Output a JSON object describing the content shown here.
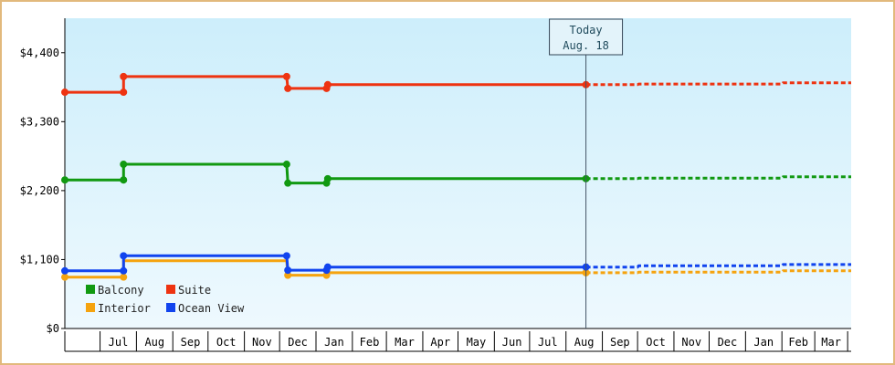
{
  "chart_data": {
    "type": "line",
    "title": "",
    "xlabel": "",
    "ylabel": "",
    "ylim": [
      0,
      4950
    ],
    "y_ticks": [
      {
        "value": 0,
        "label": "$0"
      },
      {
        "value": 1100,
        "label": "$1,100"
      },
      {
        "value": 2200,
        "label": "$2,200"
      },
      {
        "value": 3300,
        "label": "$3,300"
      },
      {
        "value": 4400,
        "label": "$4,400"
      }
    ],
    "x_range": [
      "2023-06-01",
      "2025-04-01"
    ],
    "x_ticks": [
      {
        "date": "2023-07-01",
        "label": "Jul"
      },
      {
        "date": "2023-08-01",
        "label": "Aug"
      },
      {
        "date": "2023-09-01",
        "label": "Sep"
      },
      {
        "date": "2023-10-01",
        "label": "Oct"
      },
      {
        "date": "2023-11-01",
        "label": "Nov"
      },
      {
        "date": "2023-12-01",
        "label": "Dec"
      },
      {
        "date": "2024-01-01",
        "label": "Jan"
      },
      {
        "date": "2024-02-01",
        "label": "Feb"
      },
      {
        "date": "2024-03-01",
        "label": "Mar"
      },
      {
        "date": "2024-04-01",
        "label": "Apr"
      },
      {
        "date": "2024-05-01",
        "label": "May"
      },
      {
        "date": "2024-06-01",
        "label": "Jun"
      },
      {
        "date": "2024-07-01",
        "label": "Jul"
      },
      {
        "date": "2024-08-01",
        "label": "Aug"
      },
      {
        "date": "2024-09-01",
        "label": "Sep"
      },
      {
        "date": "2024-10-01",
        "label": "Oct"
      },
      {
        "date": "2024-11-01",
        "label": "Nov"
      },
      {
        "date": "2024-12-01",
        "label": "Dec"
      },
      {
        "date": "2025-01-01",
        "label": "Jan"
      },
      {
        "date": "2025-02-01",
        "label": "Feb"
      },
      {
        "date": "2025-03-01",
        "label": "Mar"
      }
    ],
    "today": {
      "date": "2024-08-18",
      "line1": "Today",
      "line2": "Aug. 18"
    },
    "legend": {
      "position": "bottom-left",
      "columns": 2
    },
    "series": [
      {
        "name": "Balcony",
        "color": "#119911",
        "points": [
          {
            "date": "2023-06-01",
            "value": 2370
          },
          {
            "date": "2023-07-21",
            "value": 2370
          },
          {
            "date": "2023-07-21",
            "value": 2620
          },
          {
            "date": "2023-12-07",
            "value": 2620
          },
          {
            "date": "2023-12-08",
            "value": 2320
          },
          {
            "date": "2024-01-10",
            "value": 2320
          },
          {
            "date": "2024-01-11",
            "value": 2390
          },
          {
            "date": "2024-08-18",
            "value": 2390
          }
        ],
        "forecast": [
          {
            "date": "2024-08-18",
            "value": 2390
          },
          {
            "date": "2024-10-01",
            "value": 2390
          },
          {
            "date": "2024-10-02",
            "value": 2400
          },
          {
            "date": "2025-02-01",
            "value": 2400
          },
          {
            "date": "2025-02-02",
            "value": 2420
          },
          {
            "date": "2025-04-01",
            "value": 2420
          }
        ]
      },
      {
        "name": "Suite",
        "color": "#ee3311",
        "points": [
          {
            "date": "2023-06-01",
            "value": 3770
          },
          {
            "date": "2023-07-21",
            "value": 3770
          },
          {
            "date": "2023-07-21",
            "value": 4020
          },
          {
            "date": "2023-12-07",
            "value": 4020
          },
          {
            "date": "2023-12-08",
            "value": 3830
          },
          {
            "date": "2024-01-10",
            "value": 3830
          },
          {
            "date": "2024-01-11",
            "value": 3890
          },
          {
            "date": "2024-08-18",
            "value": 3890
          }
        ],
        "forecast": [
          {
            "date": "2024-08-18",
            "value": 3890
          },
          {
            "date": "2024-10-01",
            "value": 3890
          },
          {
            "date": "2024-10-02",
            "value": 3900
          },
          {
            "date": "2025-02-01",
            "value": 3900
          },
          {
            "date": "2025-02-02",
            "value": 3920
          },
          {
            "date": "2025-04-01",
            "value": 3920
          }
        ]
      },
      {
        "name": "Interior",
        "color": "#f5a30f",
        "points": [
          {
            "date": "2023-06-01",
            "value": 820
          },
          {
            "date": "2023-07-21",
            "value": 820
          },
          {
            "date": "2023-07-21",
            "value": 1080
          },
          {
            "date": "2023-12-07",
            "value": 1080
          },
          {
            "date": "2023-12-08",
            "value": 850
          },
          {
            "date": "2024-01-10",
            "value": 850
          },
          {
            "date": "2024-01-11",
            "value": 890
          },
          {
            "date": "2024-08-18",
            "value": 890
          }
        ],
        "forecast": [
          {
            "date": "2024-08-18",
            "value": 890
          },
          {
            "date": "2024-10-01",
            "value": 890
          },
          {
            "date": "2024-10-02",
            "value": 900
          },
          {
            "date": "2025-02-01",
            "value": 900
          },
          {
            "date": "2025-02-02",
            "value": 920
          },
          {
            "date": "2025-04-01",
            "value": 920
          }
        ]
      },
      {
        "name": "Ocean View",
        "color": "#1144ee",
        "points": [
          {
            "date": "2023-06-01",
            "value": 920
          },
          {
            "date": "2023-07-21",
            "value": 920
          },
          {
            "date": "2023-07-21",
            "value": 1160
          },
          {
            "date": "2023-12-07",
            "value": 1160
          },
          {
            "date": "2023-12-08",
            "value": 930
          },
          {
            "date": "2024-01-10",
            "value": 930
          },
          {
            "date": "2024-01-11",
            "value": 980
          },
          {
            "date": "2024-08-18",
            "value": 980
          }
        ],
        "forecast": [
          {
            "date": "2024-08-18",
            "value": 980
          },
          {
            "date": "2024-10-01",
            "value": 980
          },
          {
            "date": "2024-10-02",
            "value": 1000
          },
          {
            "date": "2025-02-01",
            "value": 1000
          },
          {
            "date": "2025-02-02",
            "value": 1020
          },
          {
            "date": "2025-04-01",
            "value": 1020
          }
        ]
      }
    ],
    "markers": {
      "Balcony": [
        {
          "date": "2023-06-01",
          "value": 2370
        },
        {
          "date": "2023-07-21",
          "value": 2370
        },
        {
          "date": "2023-07-21",
          "value": 2620
        },
        {
          "date": "2023-12-07",
          "value": 2620
        },
        {
          "date": "2023-12-08",
          "value": 2320
        },
        {
          "date": "2024-01-10",
          "value": 2320
        },
        {
          "date": "2024-01-11",
          "value": 2390
        },
        {
          "date": "2024-08-18",
          "value": 2390
        }
      ],
      "Suite": [
        {
          "date": "2023-06-01",
          "value": 3770
        },
        {
          "date": "2023-07-21",
          "value": 3770
        },
        {
          "date": "2023-07-21",
          "value": 4020
        },
        {
          "date": "2023-12-07",
          "value": 4020
        },
        {
          "date": "2023-12-08",
          "value": 3830
        },
        {
          "date": "2024-01-10",
          "value": 3830
        },
        {
          "date": "2024-01-11",
          "value": 3890
        },
        {
          "date": "2024-08-18",
          "value": 3890
        }
      ],
      "Interior": [
        {
          "date": "2023-06-01",
          "value": 820
        },
        {
          "date": "2023-07-21",
          "value": 820
        },
        {
          "date": "2023-12-08",
          "value": 850
        },
        {
          "date": "2024-01-10",
          "value": 850
        },
        {
          "date": "2024-08-18",
          "value": 890
        }
      ],
      "Ocean View": [
        {
          "date": "2023-06-01",
          "value": 920
        },
        {
          "date": "2023-07-21",
          "value": 920
        },
        {
          "date": "2023-07-21",
          "value": 1160
        },
        {
          "date": "2023-12-07",
          "value": 1160
        },
        {
          "date": "2023-12-08",
          "value": 930
        },
        {
          "date": "2024-01-10",
          "value": 930
        },
        {
          "date": "2024-01-11",
          "value": 980
        },
        {
          "date": "2024-08-18",
          "value": 980
        }
      ]
    },
    "legend_order": [
      "Balcony",
      "Suite",
      "Interior",
      "Ocean View"
    ],
    "colors": {
      "frame_border": "#e2b97c",
      "plot_bg_top": "#cdeefb",
      "plot_bg_bottom": "#eef9fe",
      "today_line": "#445566",
      "today_box_fill": "#e3f3fa",
      "today_box_border": "#334455"
    }
  }
}
